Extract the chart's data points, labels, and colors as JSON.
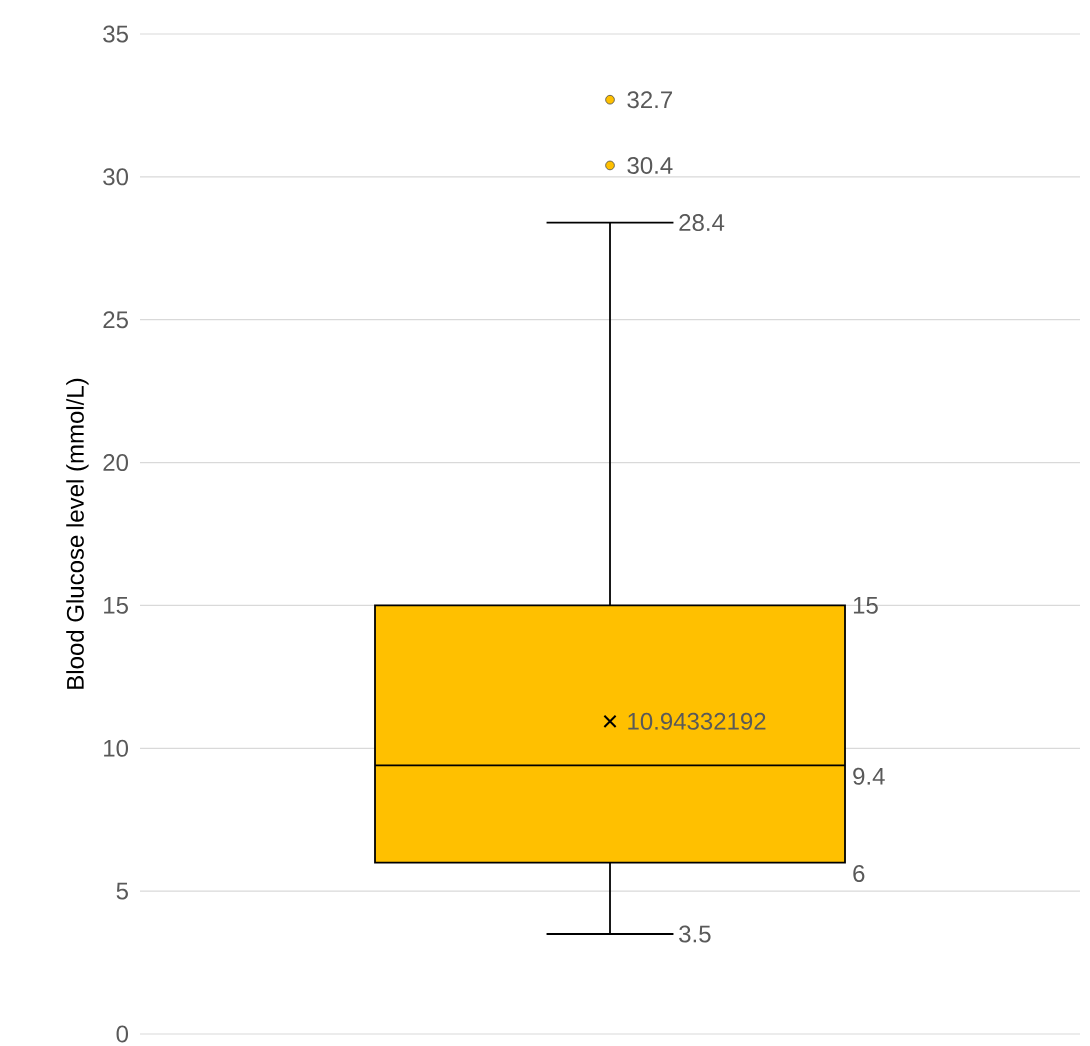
{
  "chart_data": {
    "type": "box",
    "ylabel": "Blood Glucose level (mmol/L)",
    "categories": [
      null
    ],
    "boxes": [
      {
        "low": 3.5,
        "q1": 6,
        "median": 9.4,
        "q3": 15,
        "high": 28.4,
        "mean": 10.94332192,
        "outliers": [
          30.4,
          32.7
        ]
      }
    ],
    "color": "#ffc000",
    "ylim": [
      0,
      35
    ],
    "yticks": [
      0,
      5,
      10,
      15,
      20,
      25,
      30,
      35
    ],
    "grid": true,
    "data_labels": true,
    "annotations": [
      "32.7",
      "30.4",
      "28.4",
      "15",
      "10.94332192",
      "9.4",
      "6",
      "3.5"
    ]
  }
}
